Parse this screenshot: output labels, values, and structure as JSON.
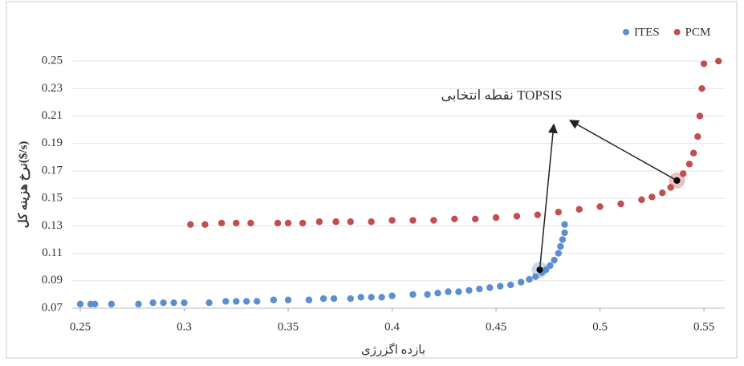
{
  "chart_data": {
    "type": "scatter",
    "x_label": "بازده اگزرژی",
    "y_label": "نرخ هزینه کل($/s)",
    "annotation": {
      "text": "نقطه انتخابی TOPSIS",
      "points": [
        [
          0.471,
          0.098
        ],
        [
          0.537,
          0.163
        ]
      ],
      "color": "#000000"
    },
    "xlim": [
      0.25,
      0.56
    ],
    "xticks": [
      0.25,
      0.3,
      0.35,
      0.4,
      0.45,
      0.5,
      0.55
    ],
    "ylim": [
      0.07,
      0.26
    ],
    "yticks": [
      0.07,
      0.09,
      0.11,
      0.13,
      0.15,
      0.17,
      0.19,
      0.21,
      0.23,
      0.25
    ],
    "grid": true,
    "legend": "top-right",
    "series": [
      {
        "name": "ITES",
        "color": "#5b8fd1",
        "x": [
          0.25,
          0.255,
          0.257,
          0.265,
          0.278,
          0.285,
          0.29,
          0.295,
          0.3,
          0.312,
          0.32,
          0.325,
          0.33,
          0.335,
          0.343,
          0.35,
          0.36,
          0.367,
          0.372,
          0.38,
          0.385,
          0.39,
          0.395,
          0.4,
          0.41,
          0.417,
          0.422,
          0.427,
          0.432,
          0.437,
          0.442,
          0.447,
          0.452,
          0.457,
          0.462,
          0.466,
          0.469,
          0.472,
          0.474,
          0.476,
          0.478,
          0.48,
          0.481,
          0.482,
          0.483,
          0.483
        ],
        "values": [
          0.073,
          0.073,
          0.073,
          0.073,
          0.073,
          0.074,
          0.074,
          0.074,
          0.074,
          0.074,
          0.075,
          0.075,
          0.075,
          0.075,
          0.076,
          0.076,
          0.076,
          0.077,
          0.077,
          0.077,
          0.078,
          0.078,
          0.078,
          0.079,
          0.08,
          0.08,
          0.081,
          0.082,
          0.082,
          0.083,
          0.084,
          0.085,
          0.086,
          0.087,
          0.089,
          0.091,
          0.093,
          0.096,
          0.098,
          0.101,
          0.105,
          0.11,
          0.115,
          0.12,
          0.125,
          0.131
        ]
      },
      {
        "name": "PCM",
        "color": "#c0504d",
        "x": [
          0.303,
          0.31,
          0.318,
          0.325,
          0.332,
          0.345,
          0.35,
          0.357,
          0.365,
          0.373,
          0.38,
          0.39,
          0.4,
          0.41,
          0.42,
          0.43,
          0.44,
          0.45,
          0.46,
          0.47,
          0.48,
          0.49,
          0.5,
          0.51,
          0.52,
          0.525,
          0.53,
          0.534,
          0.537,
          0.54,
          0.543,
          0.545,
          0.547,
          0.548,
          0.549,
          0.55,
          0.557
        ],
        "values": [
          0.131,
          0.131,
          0.132,
          0.132,
          0.132,
          0.132,
          0.132,
          0.132,
          0.133,
          0.133,
          0.133,
          0.133,
          0.134,
          0.134,
          0.134,
          0.135,
          0.135,
          0.136,
          0.137,
          0.138,
          0.14,
          0.142,
          0.144,
          0.146,
          0.149,
          0.151,
          0.154,
          0.158,
          0.163,
          0.168,
          0.175,
          0.183,
          0.195,
          0.21,
          0.23,
          0.248,
          0.25
        ]
      }
    ]
  }
}
